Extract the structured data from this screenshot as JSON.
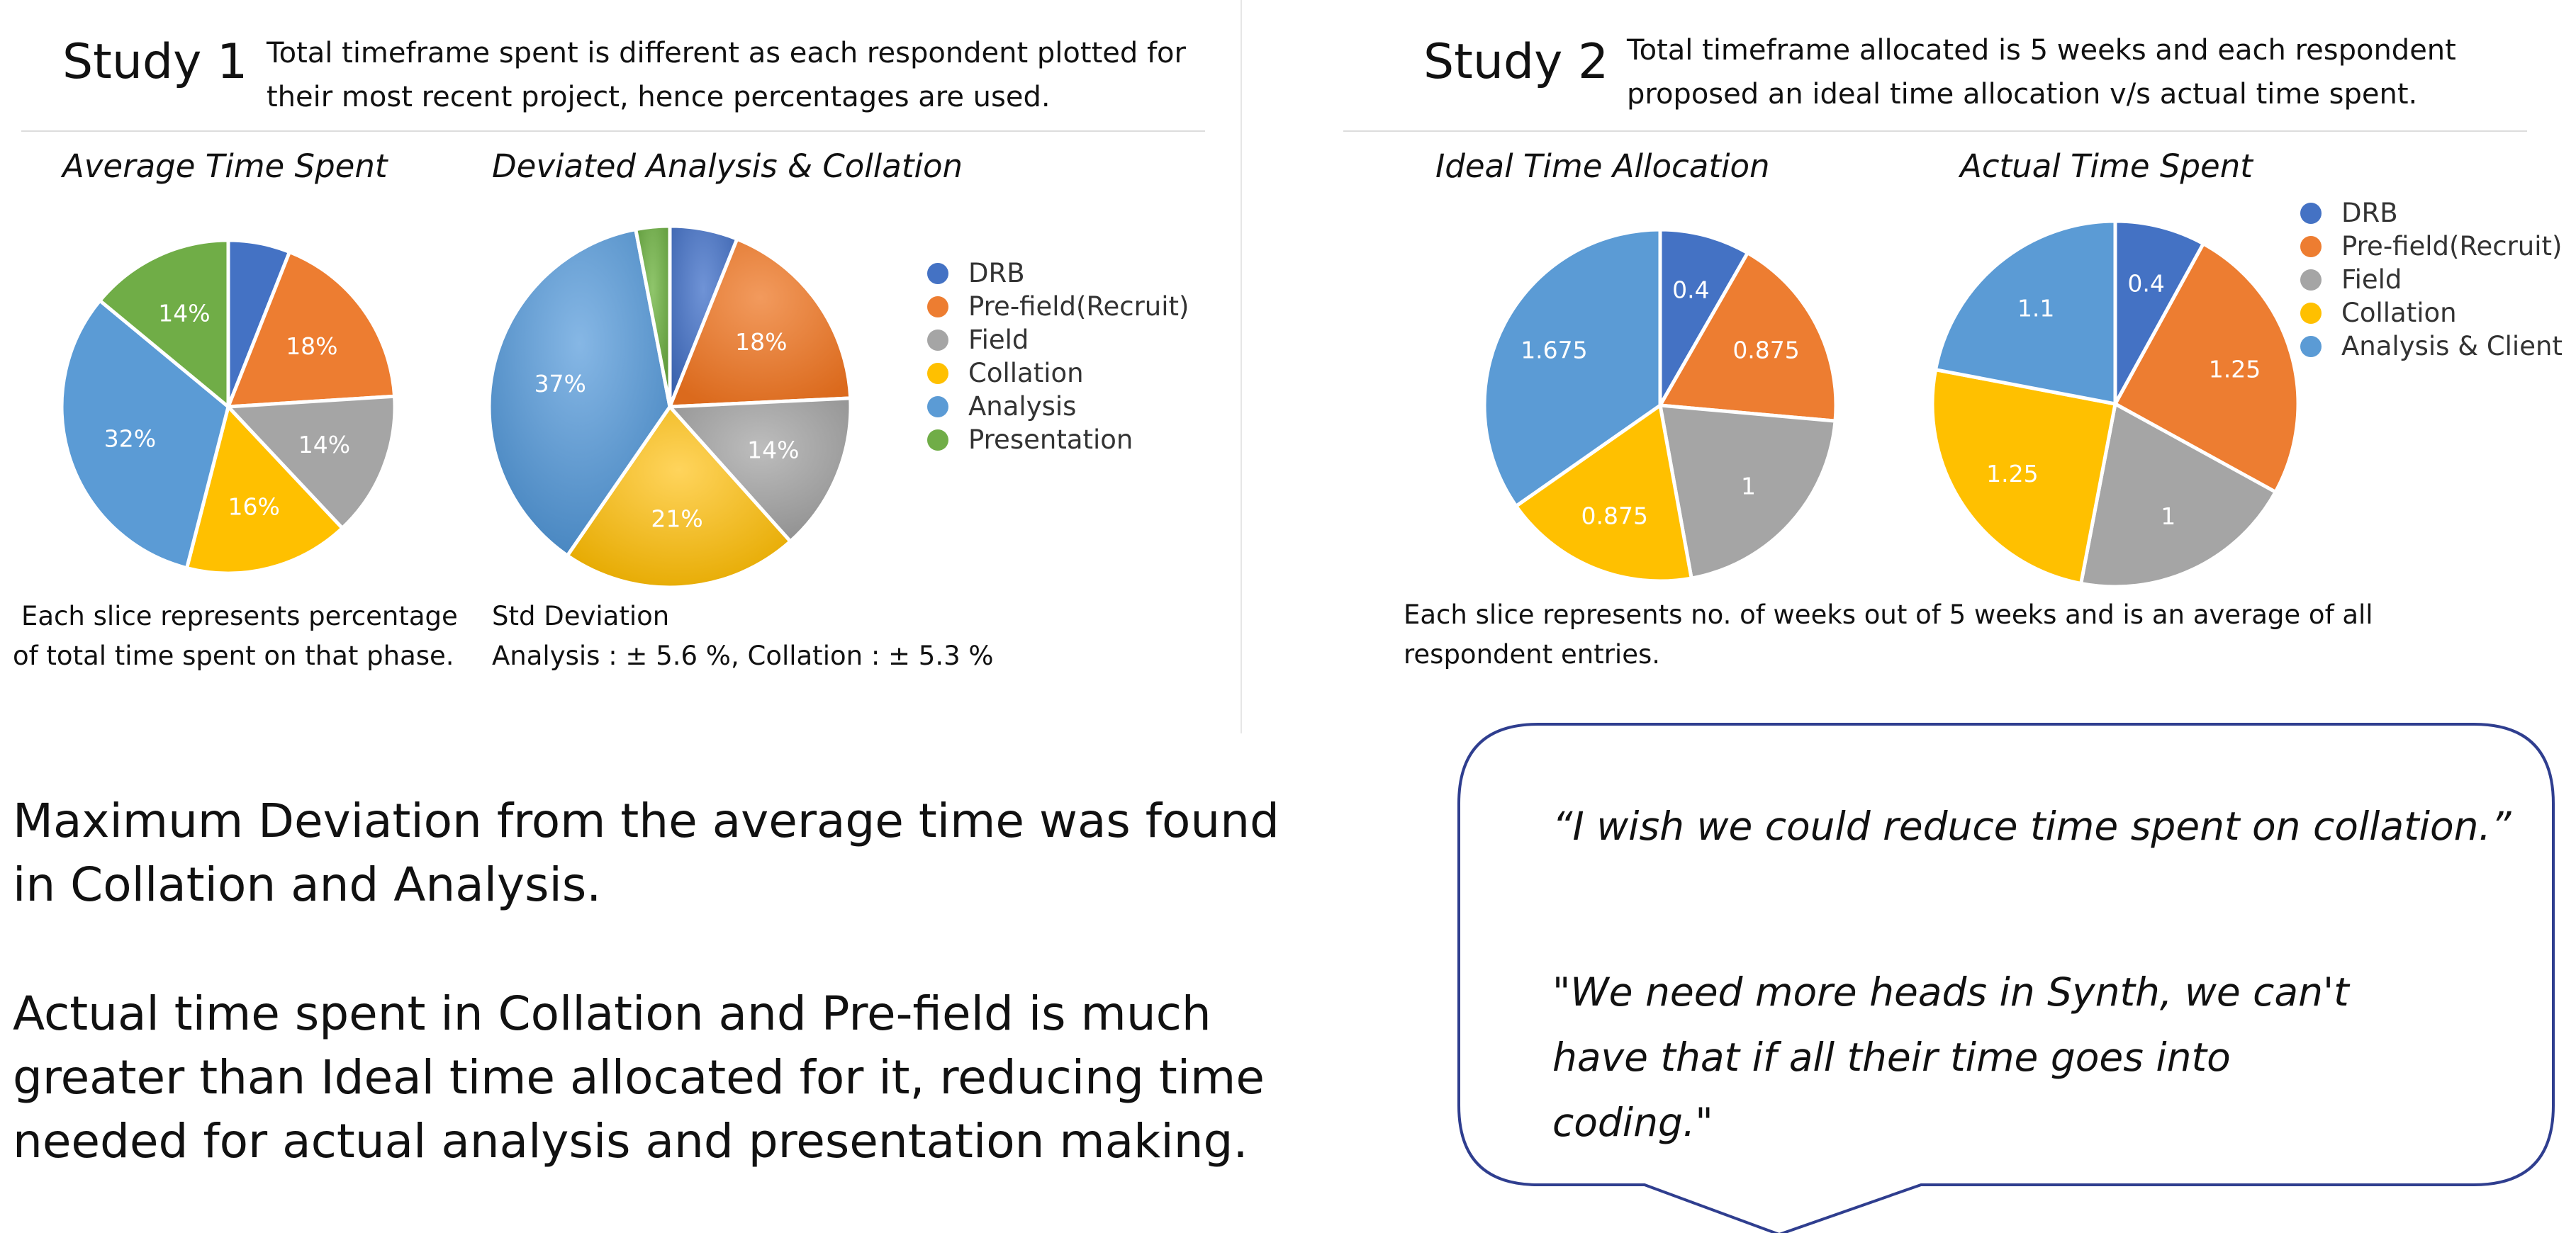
{
  "study1": {
    "title": "Study 1",
    "description_lines": [
      "Total timeframe spent is different as each respondent plotted for",
      "their most recent project, hence percentages are used."
    ],
    "note_lines": [
      "Each slice represents percentage",
      "of total time spent on that phase."
    ],
    "std_lines": [
      "Std Deviation",
      "Analysis : ± 5.6 %, Collation : ± 5.3 %"
    ]
  },
  "study2": {
    "title": "Study 2",
    "description_lines": [
      "Total timeframe allocated is 5 weeks and each respondent",
      "proposed an ideal time allocation v/s actual time spent."
    ],
    "note_lines": [
      "Each slice represents no. of weeks out of 5 weeks and is an average of all",
      "respondent entries."
    ]
  },
  "legend1": [
    {
      "label": "DRB",
      "color": "#4472c4"
    },
    {
      "label": "Pre-field(Recruit)",
      "color": "#ed7d31"
    },
    {
      "label": "Field",
      "color": "#a5a5a5"
    },
    {
      "label": "Collation",
      "color": "#ffc000"
    },
    {
      "label": "Analysis",
      "color": "#5b9bd5"
    },
    {
      "label": "Presentation",
      "color": "#70ad47"
    }
  ],
  "legend2": [
    {
      "label": "DRB",
      "color": "#4472c4"
    },
    {
      "label": "Pre-field(Recruit)",
      "color": "#ed7d31"
    },
    {
      "label": "Field",
      "color": "#a5a5a5"
    },
    {
      "label": "Collation",
      "color": "#ffc000"
    },
    {
      "label": "Analysis & Client",
      "color": "#5b9bd5"
    }
  ],
  "chart_data": [
    {
      "type": "pie",
      "title": "Average Time Spent",
      "categories": [
        "DRB",
        "Pre-field(Recruit)",
        "Field",
        "Collation",
        "Analysis",
        "Presentation"
      ],
      "values": [
        6,
        18,
        14,
        16,
        32,
        14
      ],
      "labels": [
        "",
        "18%",
        "14%",
        "16%",
        "32%",
        "14%"
      ],
      "colors": [
        "#4472c4",
        "#ed7d31",
        "#a5a5a5",
        "#ffc000",
        "#5b9bd5",
        "#70ad47"
      ],
      "style": "flat"
    },
    {
      "type": "pie",
      "title": "Deviated Analysis & Collation",
      "categories": [
        "DRB",
        "Pre-field(Recruit)",
        "Field",
        "Collation",
        "Analysis",
        "Presentation"
      ],
      "values": [
        6,
        18,
        14,
        21,
        37,
        3
      ],
      "labels": [
        "",
        "18%",
        "14%",
        "21%",
        "37%",
        ""
      ],
      "colors": [
        "#4472c4",
        "#ed7d31",
        "#a5a5a5",
        "#ffc000",
        "#5b9bd5",
        "#70ad47"
      ],
      "style": "gradient"
    },
    {
      "type": "pie",
      "title": "Ideal Time Allocation",
      "categories": [
        "DRB",
        "Pre-field(Recruit)",
        "Field",
        "Collation",
        "Analysis & Client"
      ],
      "values": [
        0.4,
        0.875,
        1,
        0.875,
        1.675
      ],
      "labels": [
        "0.4",
        "0.875",
        "1",
        "0.875",
        "1.675"
      ],
      "colors": [
        "#4472c4",
        "#ed7d31",
        "#a5a5a5",
        "#ffc000",
        "#5b9bd5"
      ],
      "style": "flat"
    },
    {
      "type": "pie",
      "title": "Actual Time Spent",
      "categories": [
        "DRB",
        "Pre-field(Recruit)",
        "Field",
        "Collation",
        "Analysis & Client"
      ],
      "values": [
        0.4,
        1.25,
        1,
        1.25,
        1.1
      ],
      "labels": [
        "0.4",
        "1.25",
        "1",
        "1.25",
        "1.1"
      ],
      "colors": [
        "#4472c4",
        "#ed7d31",
        "#a5a5a5",
        "#ffc000",
        "#5b9bd5"
      ],
      "style": "flat"
    }
  ],
  "findings": {
    "para1": "Maximum Deviation from the average time was found in Collation and Analysis.",
    "para2": "Actual time spent in Collation and Pre-field is much greater than Ideal time allocated for it, reducing time needed for actual analysis and presentation making."
  },
  "quotes": {
    "quote1": "“I wish we could reduce time spent on collation.”",
    "quote2": "\"We need more heads in Synth, we can't have that if all their time goes into coding.\""
  }
}
